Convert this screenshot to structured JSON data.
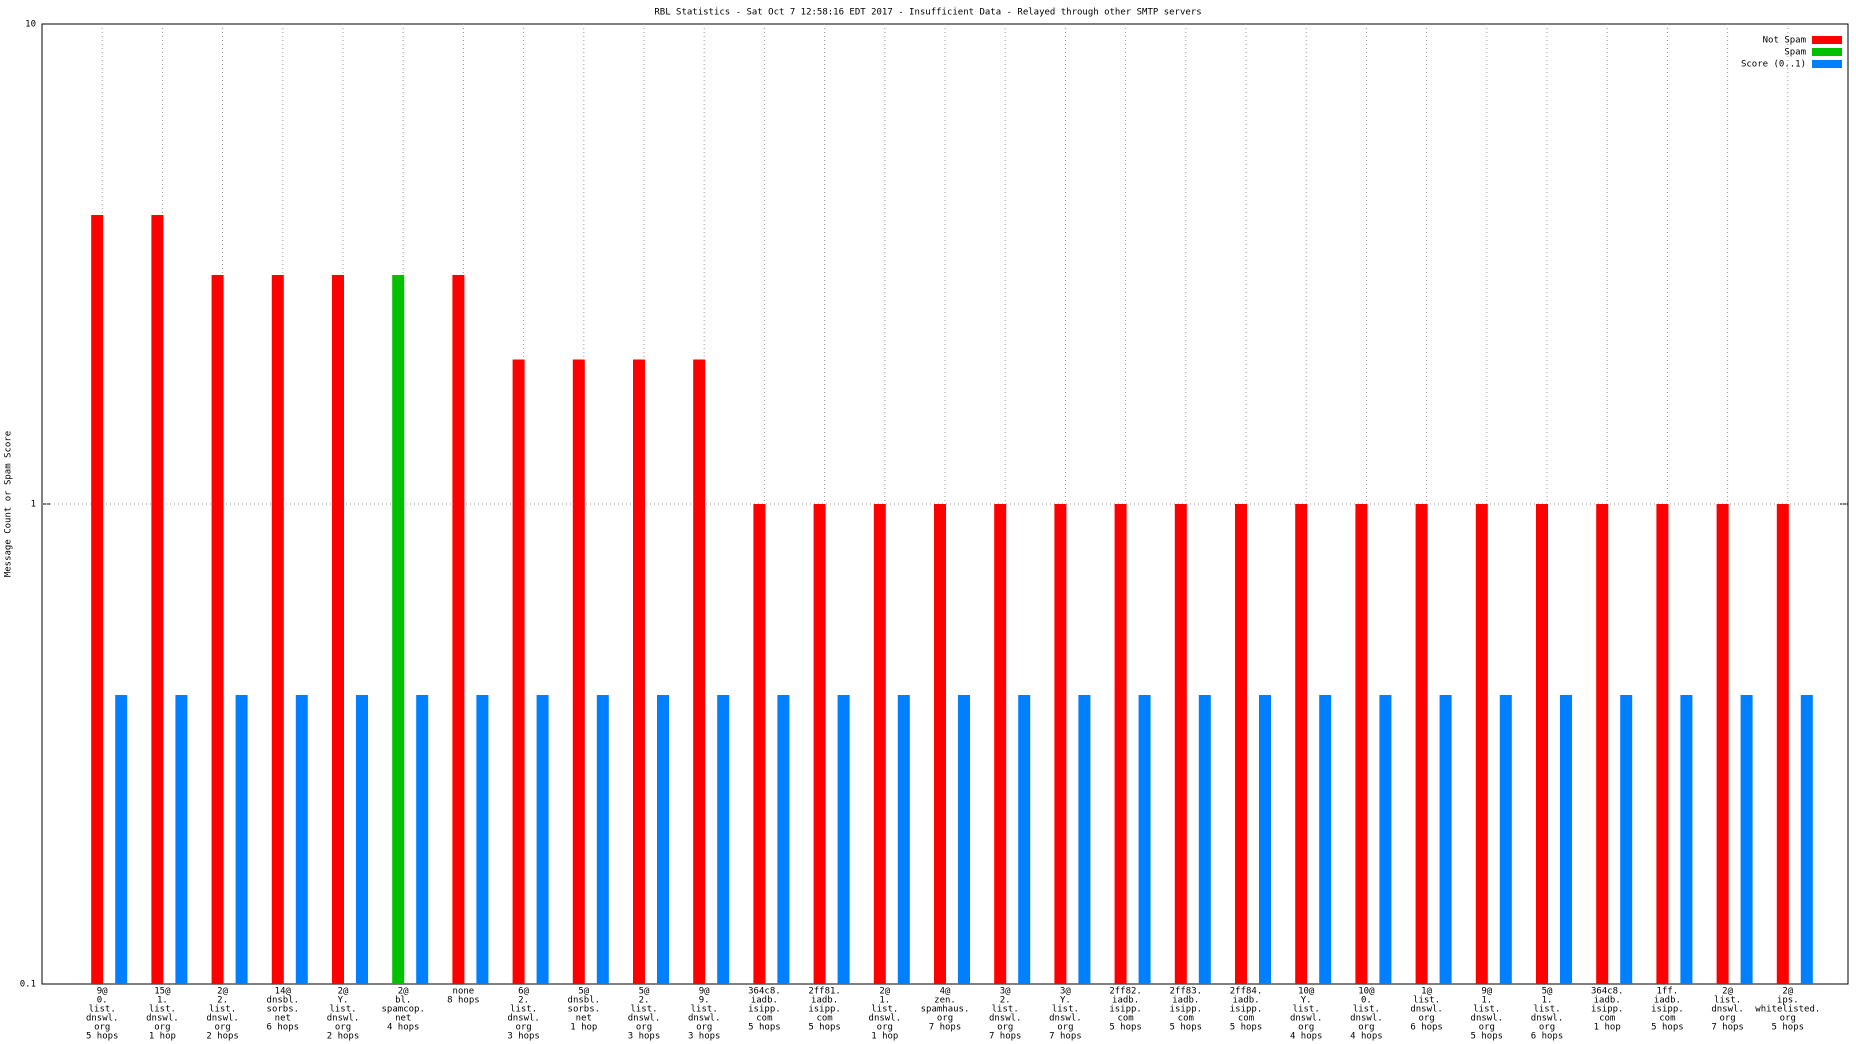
{
  "chart_data": {
    "type": "bar",
    "title": "RBL Statistics - Sat Oct  7 12:58:16 EDT 2017 - Insufficient Data - Relayed through other SMTP servers",
    "y_label": "Message Count or Spam Score",
    "log_scale": true,
    "grid": true,
    "legend": "top-right",
    "ylim": [
      0.1,
      10
    ],
    "yticks": [
      0.1,
      1,
      10
    ],
    "categories": [
      [
        "9@",
        "0.",
        "list.",
        "dnswl.",
        "org",
        "5 hops"
      ],
      [
        "15@",
        "1.",
        "list.",
        "dnswl.",
        "org",
        "1 hop"
      ],
      [
        "2@",
        "2.",
        "list.",
        "dnswl.",
        "org",
        "2 hops"
      ],
      [
        "14@",
        "dnsbl.",
        "sorbs.",
        "net",
        "6 hops"
      ],
      [
        "2@",
        "Y.",
        "list.",
        "dnswl.",
        "org",
        "2 hops"
      ],
      [
        "2@",
        "bl.",
        "spamcop.",
        "net",
        "4 hops"
      ],
      [
        "none",
        "8 hops"
      ],
      [
        "6@",
        "2.",
        "list.",
        "dnswl.",
        "org",
        "3 hops"
      ],
      [
        "5@",
        "dnsbl.",
        "sorbs.",
        "net",
        "1 hop"
      ],
      [
        "5@",
        "2.",
        "list.",
        "dnswl.",
        "org",
        "3 hops"
      ],
      [
        "9@",
        "9.",
        "list.",
        "dnswl.",
        "org",
        "3 hops"
      ],
      [
        "364c8.",
        "iadb.",
        "isipp.",
        "com",
        "5 hops"
      ],
      [
        "2ff81.",
        "iadb.",
        "isipp.",
        "com",
        "5 hops"
      ],
      [
        "2@",
        "1.",
        "list.",
        "dnswl.",
        "org",
        "1 hop"
      ],
      [
        "4@",
        "zen.",
        "spamhaus.",
        "org",
        "7 hops"
      ],
      [
        "3@",
        "2.",
        "list.",
        "dnswl.",
        "org",
        "7 hops"
      ],
      [
        "3@",
        "Y.",
        "list.",
        "dnswl.",
        "org",
        "7 hops"
      ],
      [
        "2ff82.",
        "iadb.",
        "isipp.",
        "com",
        "5 hops"
      ],
      [
        "2ff83.",
        "iadb.",
        "isipp.",
        "com",
        "5 hops"
      ],
      [
        "2ff84.",
        "iadb.",
        "isipp.",
        "com",
        "5 hops"
      ],
      [
        "10@",
        "Y.",
        "list.",
        "dnswl.",
        "org",
        "4 hops"
      ],
      [
        "10@",
        "0.",
        "list.",
        "dnswl.",
        "org",
        "4 hops"
      ],
      [
        "1@",
        "list.",
        "dnswl.",
        "org",
        "6 hops"
      ],
      [
        "9@",
        "1.",
        "list.",
        "dnswl.",
        "org",
        "5 hops"
      ],
      [
        "5@",
        "1.",
        "list.",
        "dnswl.",
        "org",
        "6 hops"
      ],
      [
        "364c8.",
        "iadb.",
        "isipp.",
        "com",
        "1 hop"
      ],
      [
        "1ff.",
        "iadb.",
        "isipp.",
        "com",
        "5 hops"
      ],
      [
        "2@",
        "list.",
        "dnswl.",
        "org",
        "7 hops"
      ],
      [
        "2@",
        "ips.",
        "whitelisted.",
        "org",
        "5 hops"
      ]
    ],
    "series": [
      {
        "name": "Not Spam",
        "color": "#ff0000",
        "values": [
          4,
          4,
          3,
          3,
          3,
          null,
          3,
          2,
          2,
          2,
          2,
          1,
          1,
          1,
          1,
          1,
          1,
          1,
          1,
          1,
          1,
          1,
          1,
          1,
          1,
          1,
          1,
          1,
          1
        ]
      },
      {
        "name": "Spam",
        "color": "#00c000",
        "values": [
          null,
          null,
          null,
          null,
          null,
          3,
          null,
          null,
          null,
          null,
          null,
          null,
          null,
          null,
          null,
          null,
          null,
          null,
          null,
          null,
          null,
          null,
          null,
          null,
          null,
          null,
          null,
          null,
          null
        ]
      },
      {
        "name": "Score (0..1)",
        "color": "#0080ff",
        "values": [
          0.4,
          0.4,
          0.4,
          0.4,
          0.4,
          0.4,
          0.4,
          0.4,
          0.4,
          0.4,
          0.4,
          0.4,
          0.4,
          0.4,
          0.4,
          0.4,
          0.4,
          0.4,
          0.4,
          0.4,
          0.4,
          0.4,
          0.4,
          0.4,
          0.4,
          0.4,
          0.4,
          0.4,
          0.4
        ]
      }
    ]
  }
}
